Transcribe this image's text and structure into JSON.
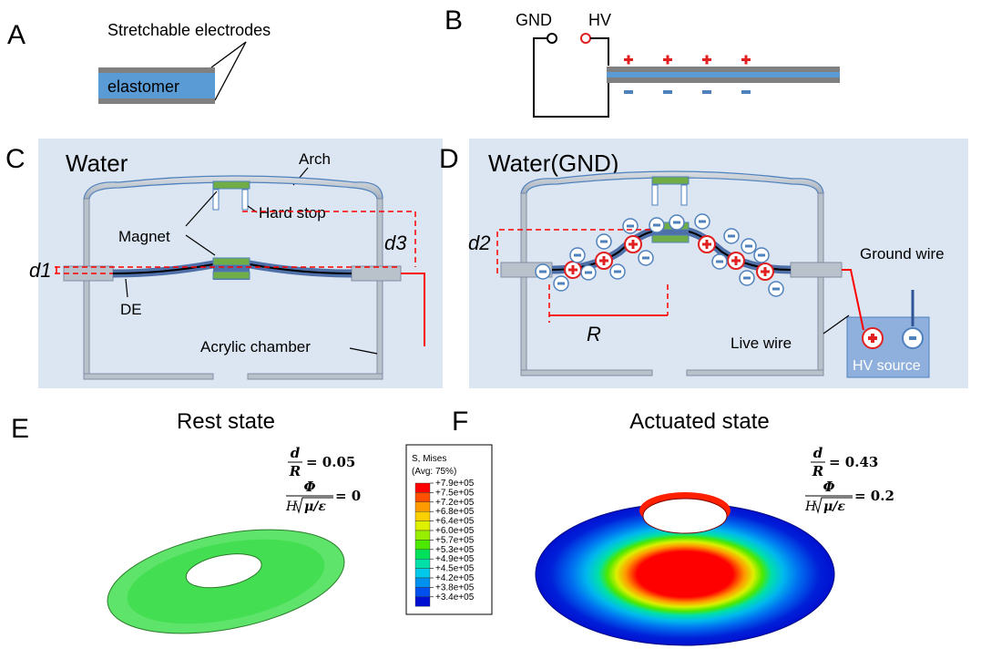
{
  "panels": {
    "A": {
      "letter": "A",
      "electrodes_label": "Stretchable electrodes",
      "elastomer_label": "elastomer"
    },
    "B": {
      "letter": "B",
      "gnd_label": "GND",
      "hv_label": "HV",
      "charge_count": 4
    },
    "C": {
      "letter": "C",
      "title": "Water",
      "arch_label": "Arch",
      "hard_stop_label": "Hard stop",
      "magnet_label": "Magnet",
      "d1_label": "d1",
      "d3_label": "d3",
      "de_label": "DE",
      "chamber_label": "Acrylic chamber"
    },
    "D": {
      "letter": "D",
      "title": "Water(GND)",
      "d2_label": "d2",
      "r_label": "R",
      "ground_wire_label": "Ground wire",
      "live_wire_label": "Live wire",
      "hv_source_label": "HV source"
    },
    "E": {
      "letter": "E",
      "title": "Rest state",
      "eq1_num": "d",
      "eq1_den": "R",
      "eq1_value": "= 0.05",
      "eq2_num": "Φ",
      "eq2_den_prefix": "H",
      "eq2_den_root": "μ/ε",
      "eq2_value": "= 0",
      "stress_level": 0.5
    },
    "F": {
      "letter": "F",
      "title": "Actuated state",
      "eq1_num": "d",
      "eq1_den": "R",
      "eq1_value": "= 0.43",
      "eq2_num": "Φ",
      "eq2_den_prefix": "H",
      "eq2_den_root": "μ/ε",
      "eq2_value": "= 0.2"
    }
  },
  "legend": {
    "title_line1": "S, Mises",
    "title_line2": "(Avg: 75%)",
    "levels": [
      "+7.9e+05",
      "+7.5e+05",
      "+7.2e+05",
      "+6.8e+05",
      "+6.4e+05",
      "+6.0e+05",
      "+5.7e+05",
      "+5.3e+05",
      "+4.9e+05",
      "+4.5e+05",
      "+4.2e+05",
      "+3.8e+05",
      "+3.4e+05"
    ],
    "colors": [
      "#ff0000",
      "#ff5000",
      "#ff9a00",
      "#ffd000",
      "#dcf000",
      "#98ee00",
      "#4ce800",
      "#00e05a",
      "#00e0a8",
      "#00c8e8",
      "#0090f0",
      "#0050f0",
      "#0010d0"
    ]
  },
  "colors": {
    "panel_bg": "#dce6f2",
    "chamber_gray": "#b9c1cb",
    "chamber_edge": "#7f8fa6",
    "membrane": "#4f6fa8",
    "magnet": "#70ad47",
    "elastomer": "#5b9bd5",
    "electrode": "#808080",
    "positive": "#e02020",
    "negative": "#4f81bd",
    "wire": "#ff0000",
    "dashed": "#ff0000"
  }
}
